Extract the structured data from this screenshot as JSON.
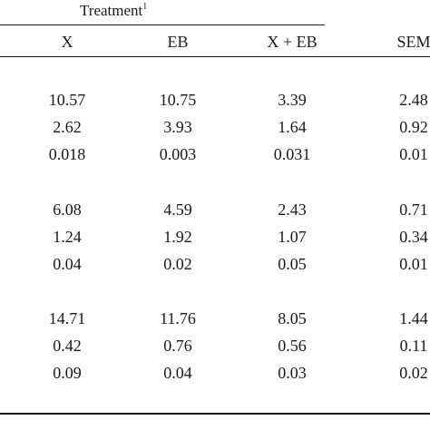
{
  "table": {
    "group_header": {
      "label": "Treatment",
      "footnote_mark": "1"
    },
    "columns": [
      "X",
      "EB",
      "X + EB",
      "SEM"
    ],
    "row_groups": [
      {
        "rows": [
          [
            "10.57",
            "10.75",
            "3.39",
            "2.48"
          ],
          [
            "2.62",
            "3.93",
            "1.64",
            "0.92"
          ],
          [
            "0.018",
            "0.003",
            "0.031",
            "0.01"
          ]
        ]
      },
      {
        "rows": [
          [
            "6.08",
            "4.59",
            "2.43",
            "0.71"
          ],
          [
            "1.24",
            "1.92",
            "1.07",
            "0.34"
          ],
          [
            "0.04",
            "0.02",
            "0.05",
            "0.01"
          ]
        ]
      },
      {
        "rows": [
          [
            "14.71",
            "11.76",
            "8.05",
            "1.44"
          ],
          [
            "0.42",
            "0.76",
            "0.56",
            "0.11"
          ],
          [
            "0.09",
            "0.04",
            "0.03",
            "0.02"
          ]
        ]
      }
    ]
  }
}
